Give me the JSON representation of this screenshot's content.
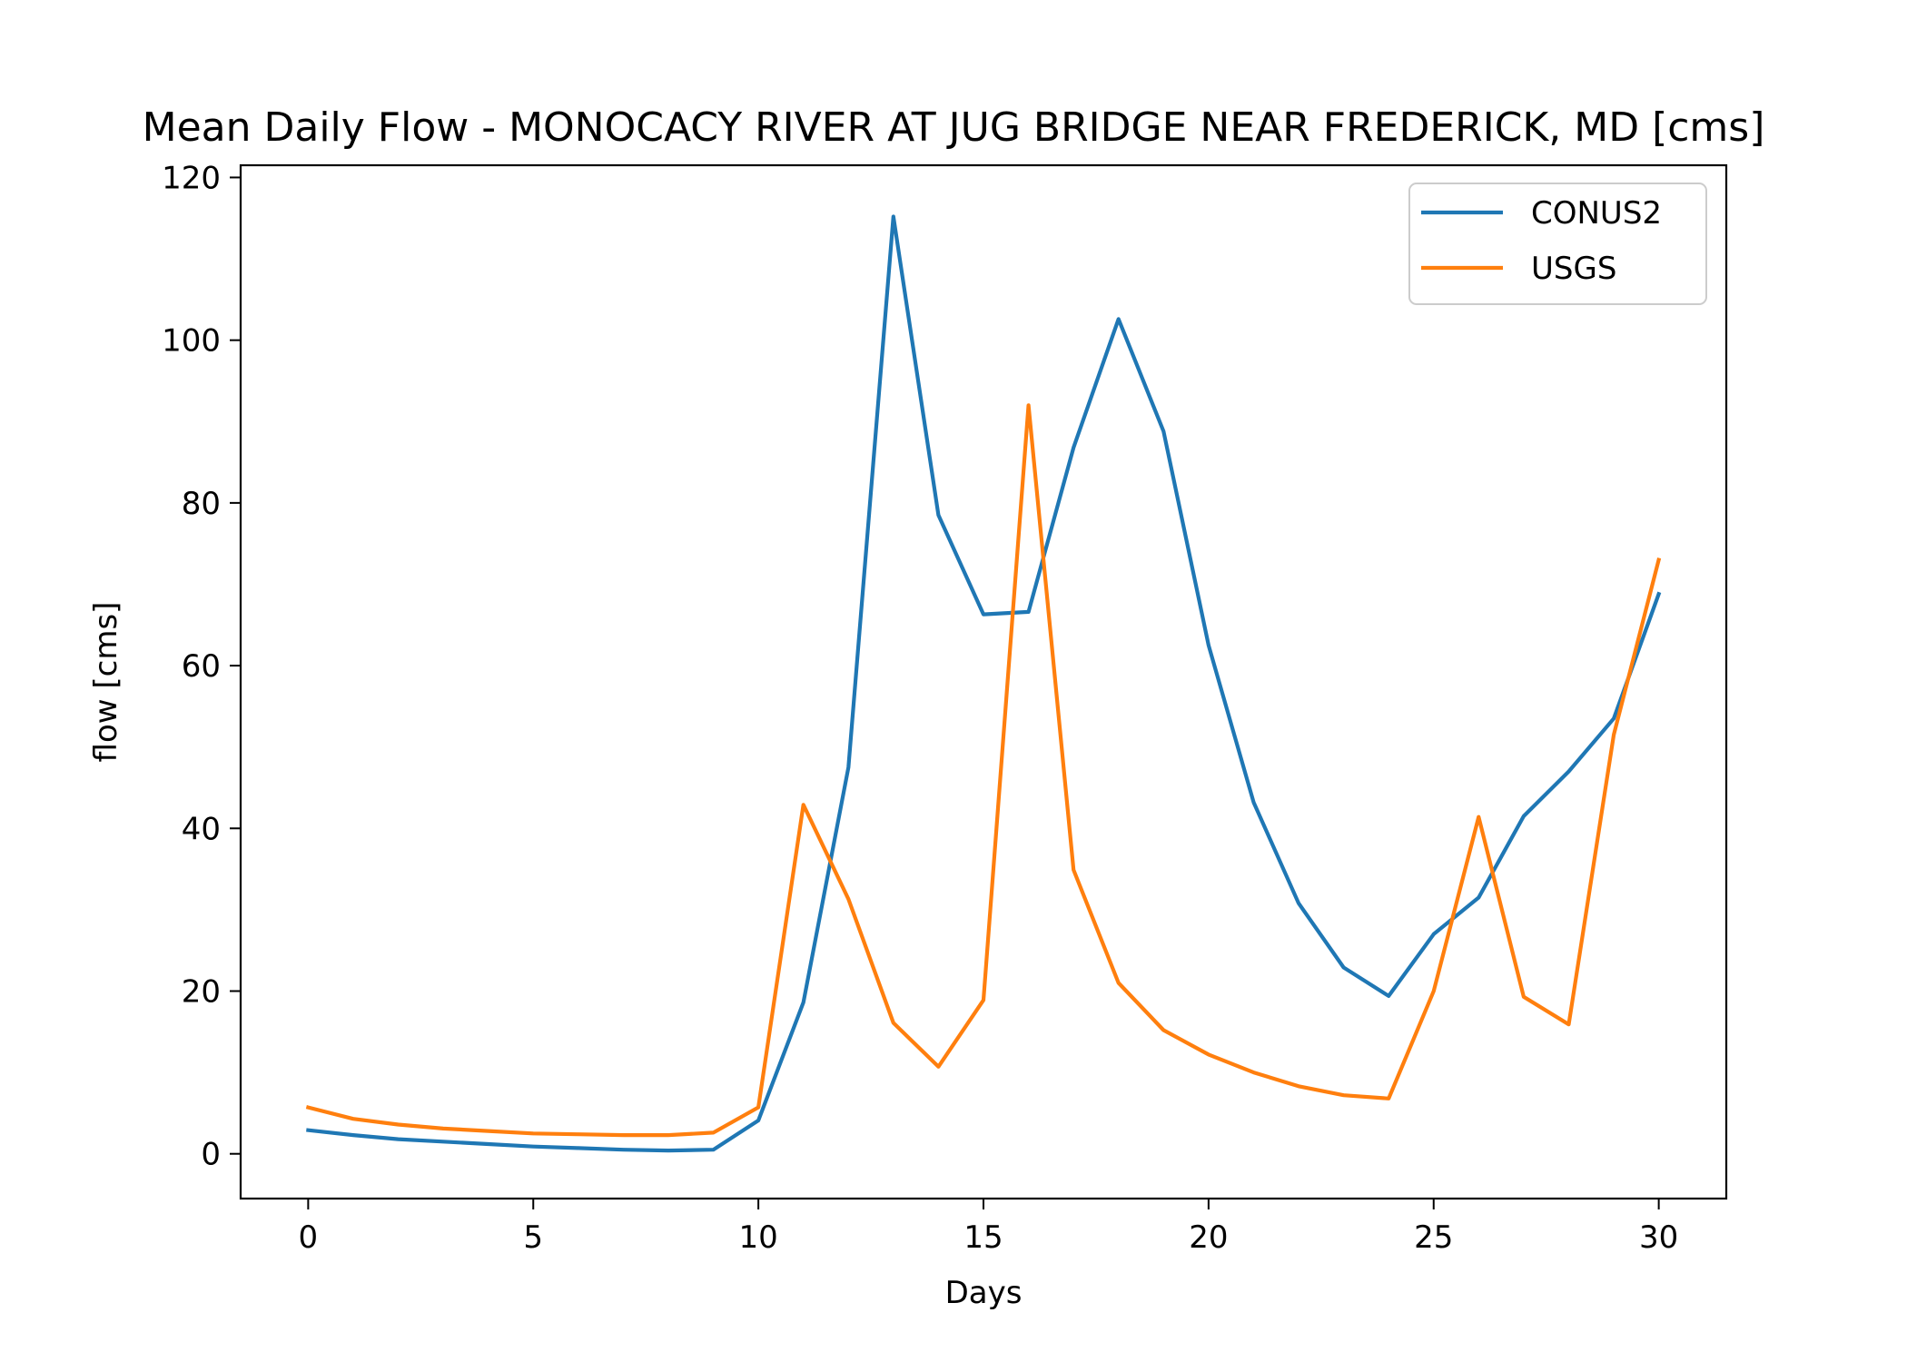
{
  "chart_data": {
    "type": "line",
    "title": "Mean Daily Flow - MONOCACY RIVER AT JUG BRIDGE NEAR FREDERICK, MD [cms]",
    "xlabel": "Days",
    "ylabel": "flow [cms]",
    "xlim": [
      -1.5,
      31.5
    ],
    "ylim": [
      -5.5,
      121.5
    ],
    "xticks": [
      0,
      5,
      10,
      15,
      20,
      25,
      30
    ],
    "yticks": [
      0,
      20,
      40,
      60,
      80,
      100,
      120
    ],
    "grid": false,
    "legend_position": "top-right",
    "x": [
      0,
      1,
      2,
      3,
      4,
      5,
      6,
      7,
      8,
      9,
      10,
      11,
      12,
      13,
      14,
      15,
      16,
      17,
      18,
      19,
      20,
      21,
      22,
      23,
      24,
      25,
      26,
      27,
      28,
      29,
      30
    ],
    "series": [
      {
        "name": "CONUS2",
        "color": "#1f77b4",
        "values": [
          2.9,
          2.3,
          1.8,
          1.5,
          1.2,
          0.9,
          0.7,
          0.5,
          0.4,
          0.5,
          4.1,
          18.6,
          47.5,
          115.2,
          78.5,
          66.3,
          66.6,
          86.8,
          102.6,
          88.8,
          62.5,
          43.2,
          30.8,
          22.9,
          19.4,
          27.0,
          31.5,
          41.5,
          47.0,
          53.5,
          68.8
        ]
      },
      {
        "name": "USGS",
        "color": "#ff7f0e",
        "values": [
          5.7,
          4.3,
          3.6,
          3.1,
          2.8,
          2.5,
          2.4,
          2.3,
          2.3,
          2.6,
          5.7,
          42.9,
          31.3,
          16.1,
          10.7,
          18.9,
          92.0,
          34.9,
          21.0,
          15.2,
          12.2,
          10.0,
          8.3,
          7.2,
          6.8,
          20.0,
          41.4,
          19.3,
          15.9,
          51.5,
          73.0
        ]
      }
    ]
  }
}
